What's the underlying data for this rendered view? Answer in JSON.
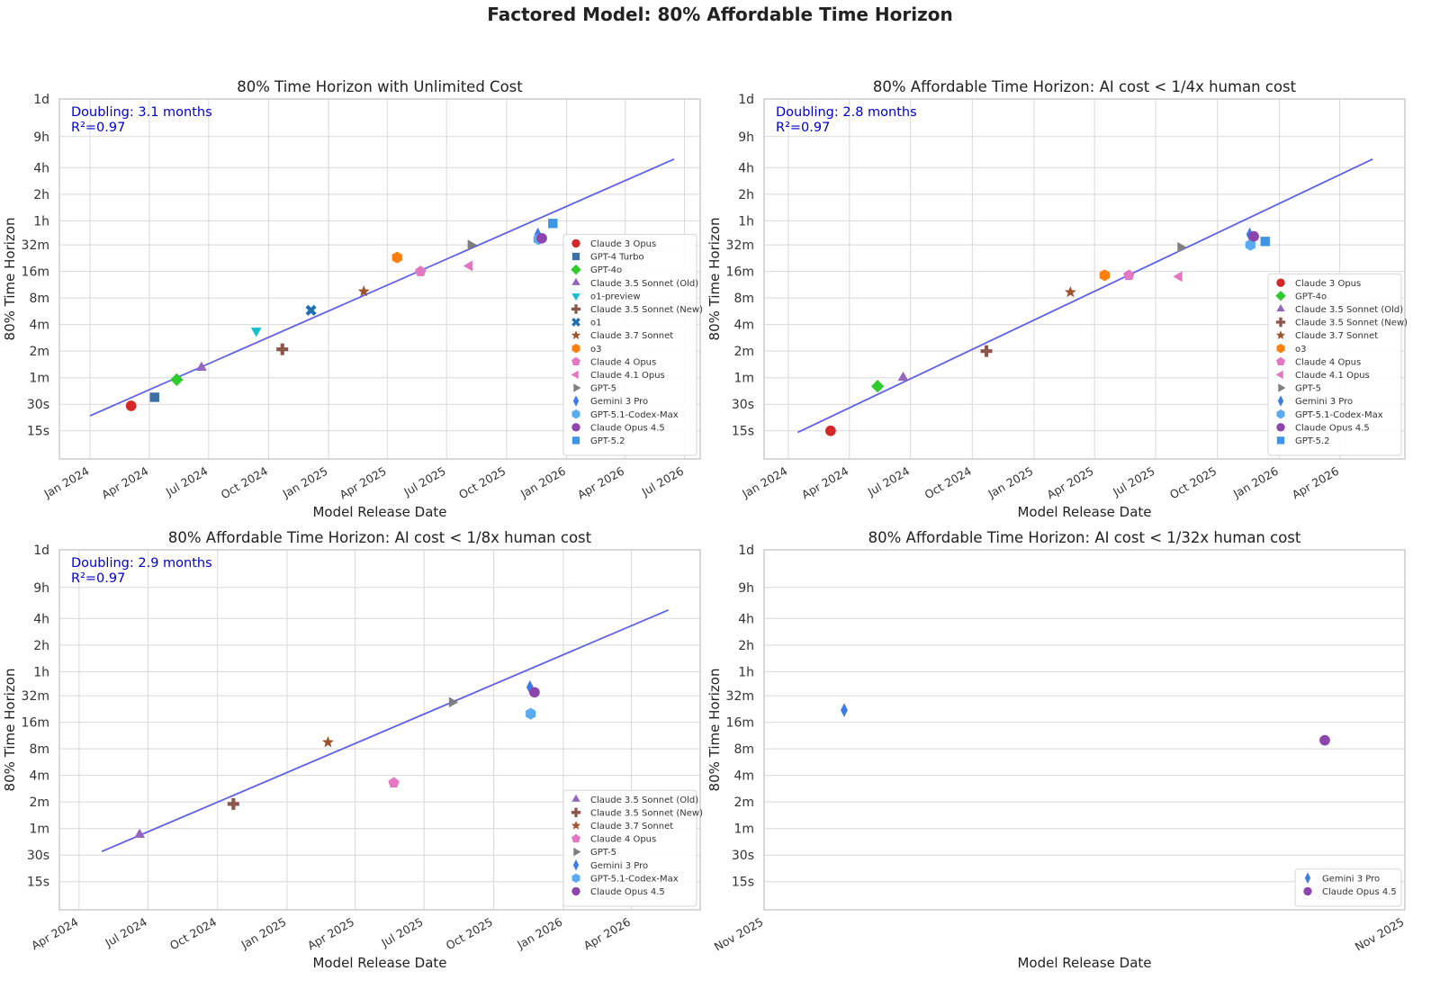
{
  "figure": {
    "title": "Factored Model: 80% Affordable Time Horizon"
  },
  "colors": {
    "Claude 3 Opus": "#d62728",
    "GPT-4 Turbo": "#3b6fa8",
    "GPT-4o": "#2ecc2e",
    "Claude 3.5 Sonnet (Old)": "#9467bd",
    "o1-preview": "#17becf",
    "Claude 3.5 Sonnet (New)": "#8c564b",
    "o1": "#1f6fb4",
    "Claude 3.7 Sonnet": "#a0522d",
    "o3": "#ff7f0e",
    "Claude 4 Opus": "#e377c2",
    "Claude 4.1 Opus": "#e377c2",
    "GPT-5": "#7f7f7f",
    "Gemini 3 Pro": "#3d7be6",
    "GPT-5.1-Codex-Max": "#5aabef",
    "Claude Opus 4.5": "#8e44ad",
    "GPT-5.2": "#3d95e6",
    "fit_line": "#6060e6",
    "annotation": "#0000cc"
  },
  "markers": {
    "Claude 3 Opus": "circle",
    "GPT-4 Turbo": "square",
    "GPT-4o": "diamond",
    "Claude 3.5 Sonnet (Old)": "triangle-up",
    "o1-preview": "triangle-down",
    "Claude 3.5 Sonnet (New)": "plus",
    "o1": "x",
    "Claude 3.7 Sonnet": "star",
    "o3": "hexagon",
    "Claude 4 Opus": "pentagon",
    "Claude 4.1 Opus": "triangle-left",
    "GPT-5": "triangle-right",
    "Gemini 3 Pro": "thin-diamond",
    "GPT-5.1-Codex-Max": "hexagon",
    "Claude Opus 4.5": "circle",
    "GPT-5.2": "square"
  },
  "chart_data": [
    {
      "type": "scatter",
      "title": "80% Time Horizon with Unlimited Cost",
      "xlabel": "Model Release Date",
      "ylabel": "80% Time Horizon",
      "yscale": "log-minutes",
      "ylim": [
        0.12,
        1440
      ],
      "y_ticks": [
        {
          "value": 0.25,
          "label": "15s"
        },
        {
          "value": 0.5,
          "label": "30s"
        },
        {
          "value": 1,
          "label": "1m"
        },
        {
          "value": 2,
          "label": "2m"
        },
        {
          "value": 4,
          "label": "4m"
        },
        {
          "value": 8,
          "label": "8m"
        },
        {
          "value": 16,
          "label": "16m"
        },
        {
          "value": 32,
          "label": "32m"
        },
        {
          "value": 60,
          "label": "1h"
        },
        {
          "value": 120,
          "label": "2h"
        },
        {
          "value": 240,
          "label": "4h"
        },
        {
          "value": 540,
          "label": "9h"
        },
        {
          "value": 1440,
          "label": "1d"
        }
      ],
      "xlim": [
        "2023-11-15",
        "2026-07-25"
      ],
      "x_ticks": [
        {
          "value": "2024-01-01",
          "label": "Jan 2024"
        },
        {
          "value": "2024-04-01",
          "label": "Apr 2024"
        },
        {
          "value": "2024-07-01",
          "label": "Jul 2024"
        },
        {
          "value": "2024-10-01",
          "label": "Oct 2024"
        },
        {
          "value": "2025-01-01",
          "label": "Jan 2025"
        },
        {
          "value": "2025-04-01",
          "label": "Apr 2025"
        },
        {
          "value": "2025-07-01",
          "label": "Jul 2025"
        },
        {
          "value": "2025-10-01",
          "label": "Oct 2025"
        },
        {
          "value": "2026-01-01",
          "label": "Jan 2026"
        },
        {
          "value": "2026-04-01",
          "label": "Apr 2026"
        },
        {
          "value": "2026-07-01",
          "label": "Jul 2026"
        }
      ],
      "annotation": {
        "doubling": "Doubling: 3.1 months",
        "r2": "R²=0.97"
      },
      "fit_line": {
        "x": [
          "2024-01-01",
          "2026-06-15"
        ],
        "y": [
          0.37,
          300
        ]
      },
      "points": [
        {
          "model": "Claude 3 Opus",
          "date": "2024-03-04",
          "y": 0.48
        },
        {
          "model": "GPT-4 Turbo",
          "date": "2024-04-09",
          "y": 0.6
        },
        {
          "model": "GPT-4o",
          "date": "2024-05-13",
          "y": 0.95
        },
        {
          "model": "Claude 3.5 Sonnet (Old)",
          "date": "2024-06-20",
          "y": 1.3
        },
        {
          "model": "o1-preview",
          "date": "2024-09-12",
          "y": 3.4
        },
        {
          "model": "Claude 3.5 Sonnet (New)",
          "date": "2024-10-22",
          "y": 2.1
        },
        {
          "model": "o1",
          "date": "2024-12-05",
          "y": 5.8
        },
        {
          "model": "Claude 3.7 Sonnet",
          "date": "2025-02-24",
          "y": 9.5
        },
        {
          "model": "o3",
          "date": "2025-04-16",
          "y": 23
        },
        {
          "model": "Claude 4 Opus",
          "date": "2025-05-22",
          "y": 16
        },
        {
          "model": "Claude 4.1 Opus",
          "date": "2025-08-05",
          "y": 18.5
        },
        {
          "model": "GPT-5",
          "date": "2025-08-07",
          "y": 32
        },
        {
          "model": "Gemini 3 Pro",
          "date": "2025-11-18",
          "y": 42
        },
        {
          "model": "GPT-5.1-Codex-Max",
          "date": "2025-11-19",
          "y": 37
        },
        {
          "model": "Claude Opus 4.5",
          "date": "2025-11-24",
          "y": 38
        },
        {
          "model": "GPT-5.2",
          "date": "2025-12-11",
          "y": 56
        }
      ],
      "legend": {
        "placement": "lower-right",
        "entries": [
          "Claude 3 Opus",
          "GPT-4 Turbo",
          "GPT-4o",
          "Claude 3.5 Sonnet (Old)",
          "o1-preview",
          "Claude 3.5 Sonnet (New)",
          "o1",
          "Claude 3.7 Sonnet",
          "o3",
          "Claude 4 Opus",
          "Claude 4.1 Opus",
          "GPT-5",
          "Gemini 3 Pro",
          "GPT-5.1-Codex-Max",
          "Claude Opus 4.5",
          "GPT-5.2"
        ]
      }
    },
    {
      "type": "scatter",
      "title": "80% Affordable Time Horizon: AI cost < 1/4x human cost",
      "xlabel": "Model Release Date",
      "ylabel": "80% Time Horizon",
      "yscale": "log-minutes",
      "ylim": [
        0.12,
        1440
      ],
      "y_ticks": [
        {
          "value": 0.25,
          "label": "15s"
        },
        {
          "value": 0.5,
          "label": "30s"
        },
        {
          "value": 1,
          "label": "1m"
        },
        {
          "value": 2,
          "label": "2m"
        },
        {
          "value": 4,
          "label": "4m"
        },
        {
          "value": 8,
          "label": "8m"
        },
        {
          "value": 16,
          "label": "16m"
        },
        {
          "value": 32,
          "label": "32m"
        },
        {
          "value": 60,
          "label": "1h"
        },
        {
          "value": 120,
          "label": "2h"
        },
        {
          "value": 240,
          "label": "4h"
        },
        {
          "value": 540,
          "label": "9h"
        },
        {
          "value": 1440,
          "label": "1d"
        }
      ],
      "xlim": [
        "2023-11-26",
        "2026-07-07"
      ],
      "x_ticks": [
        {
          "value": "2024-01-01",
          "label": "Jan 2024"
        },
        {
          "value": "2024-04-01",
          "label": "Apr 2024"
        },
        {
          "value": "2024-07-01",
          "label": "Jul 2024"
        },
        {
          "value": "2024-10-01",
          "label": "Oct 2024"
        },
        {
          "value": "2025-01-01",
          "label": "Jan 2025"
        },
        {
          "value": "2025-04-01",
          "label": "Apr 2025"
        },
        {
          "value": "2025-07-01",
          "label": "Jul 2025"
        },
        {
          "value": "2025-10-01",
          "label": "Oct 2025"
        },
        {
          "value": "2026-01-01",
          "label": "Jan 2026"
        },
        {
          "value": "2026-04-01",
          "label": "Apr 2026"
        }
      ],
      "annotation": {
        "doubling": "Doubling: 2.8 months",
        "r2": "R²=0.97"
      },
      "fit_line": {
        "x": [
          "2024-01-15",
          "2026-05-20"
        ],
        "y": [
          0.24,
          300
        ]
      },
      "points": [
        {
          "model": "Claude 3 Opus",
          "date": "2024-03-04",
          "y": 0.25
        },
        {
          "model": "GPT-4o",
          "date": "2024-05-13",
          "y": 0.8
        },
        {
          "model": "Claude 3.5 Sonnet (Old)",
          "date": "2024-06-20",
          "y": 1.0
        },
        {
          "model": "Claude 3.5 Sonnet (New)",
          "date": "2024-10-22",
          "y": 2.0
        },
        {
          "model": "Claude 3.7 Sonnet",
          "date": "2025-02-24",
          "y": 9.3
        },
        {
          "model": "o3",
          "date": "2025-04-16",
          "y": 14.5
        },
        {
          "model": "Claude 4 Opus",
          "date": "2025-05-22",
          "y": 14.5
        },
        {
          "model": "Claude 4.1 Opus",
          "date": "2025-08-05",
          "y": 14
        },
        {
          "model": "GPT-5",
          "date": "2025-08-07",
          "y": 30
        },
        {
          "model": "Gemini 3 Pro",
          "date": "2025-11-18",
          "y": 42
        },
        {
          "model": "GPT-5.1-Codex-Max",
          "date": "2025-11-19",
          "y": 32
        },
        {
          "model": "Claude Opus 4.5",
          "date": "2025-11-24",
          "y": 40
        },
        {
          "model": "GPT-5.2",
          "date": "2025-12-11",
          "y": 35
        }
      ],
      "legend": {
        "placement": "lower-right",
        "entries": [
          "Claude 3 Opus",
          "GPT-4o",
          "Claude 3.5 Sonnet (Old)",
          "Claude 3.5 Sonnet (New)",
          "Claude 3.7 Sonnet",
          "o3",
          "Claude 4 Opus",
          "Claude 4.1 Opus",
          "GPT-5",
          "Gemini 3 Pro",
          "GPT-5.1-Codex-Max",
          "Claude Opus 4.5",
          "GPT-5.2"
        ]
      }
    },
    {
      "type": "scatter",
      "title": "80% Affordable Time Horizon: AI cost < 1/8x human cost",
      "xlabel": "Model Release Date",
      "ylabel": "80% Time Horizon",
      "yscale": "log-minutes",
      "ylim": [
        0.12,
        1440
      ],
      "y_ticks": [
        {
          "value": 0.25,
          "label": "15s"
        },
        {
          "value": 0.5,
          "label": "30s"
        },
        {
          "value": 1,
          "label": "1m"
        },
        {
          "value": 2,
          "label": "2m"
        },
        {
          "value": 4,
          "label": "4m"
        },
        {
          "value": 8,
          "label": "8m"
        },
        {
          "value": 16,
          "label": "16m"
        },
        {
          "value": 32,
          "label": "32m"
        },
        {
          "value": 60,
          "label": "1h"
        },
        {
          "value": 120,
          "label": "2h"
        },
        {
          "value": 240,
          "label": "4h"
        },
        {
          "value": 540,
          "label": "9h"
        },
        {
          "value": 1440,
          "label": "1d"
        }
      ],
      "xlim": [
        "2024-03-06",
        "2026-07-01"
      ],
      "x_ticks": [
        {
          "value": "2024-04-01",
          "label": "Apr 2024"
        },
        {
          "value": "2024-07-01",
          "label": "Jul 2024"
        },
        {
          "value": "2024-10-01",
          "label": "Oct 2024"
        },
        {
          "value": "2025-01-01",
          "label": "Jan 2025"
        },
        {
          "value": "2025-04-01",
          "label": "Apr 2025"
        },
        {
          "value": "2025-07-01",
          "label": "Jul 2025"
        },
        {
          "value": "2025-10-01",
          "label": "Oct 2025"
        },
        {
          "value": "2026-01-01",
          "label": "Jan 2026"
        },
        {
          "value": "2026-04-01",
          "label": "Apr 2026"
        }
      ],
      "annotation": {
        "doubling": "Doubling: 2.9 months",
        "r2": "R²=0.97"
      },
      "fit_line": {
        "x": [
          "2024-05-01",
          "2026-05-20"
        ],
        "y": [
          0.55,
          300
        ]
      },
      "points": [
        {
          "model": "Claude 3.5 Sonnet (Old)",
          "date": "2024-06-20",
          "y": 0.85
        },
        {
          "model": "Claude 3.5 Sonnet (New)",
          "date": "2024-10-22",
          "y": 1.9
        },
        {
          "model": "Claude 3.7 Sonnet",
          "date": "2025-02-24",
          "y": 9.5
        },
        {
          "model": "Claude 4 Opus",
          "date": "2025-05-22",
          "y": 3.3
        },
        {
          "model": "GPT-5",
          "date": "2025-08-07",
          "y": 27
        },
        {
          "model": "Gemini 3 Pro",
          "date": "2025-11-18",
          "y": 40
        },
        {
          "model": "GPT-5.1-Codex-Max",
          "date": "2025-11-19",
          "y": 20
        },
        {
          "model": "Claude Opus 4.5",
          "date": "2025-11-24",
          "y": 35
        }
      ],
      "legend": {
        "placement": "lower-right",
        "entries": [
          "Claude 3.5 Sonnet (Old)",
          "Claude 3.5 Sonnet (New)",
          "Claude 3.7 Sonnet",
          "Claude 4 Opus",
          "GPT-5",
          "Gemini 3 Pro",
          "GPT-5.1-Codex-Max",
          "Claude Opus 4.5"
        ]
      }
    },
    {
      "type": "scatter",
      "title": "80% Affordable Time Horizon: AI cost < 1/32x human cost",
      "xlabel": "Model Release Date",
      "ylabel": "80% Time Horizon",
      "yscale": "log-minutes",
      "ylim": [
        0.12,
        1440
      ],
      "y_ticks": [
        {
          "value": 0.25,
          "label": "15s"
        },
        {
          "value": 0.5,
          "label": "30s"
        },
        {
          "value": 1,
          "label": "1m"
        },
        {
          "value": 2,
          "label": "2m"
        },
        {
          "value": 4,
          "label": "4m"
        },
        {
          "value": 8,
          "label": "8m"
        },
        {
          "value": 16,
          "label": "16m"
        },
        {
          "value": 32,
          "label": "32m"
        },
        {
          "value": 60,
          "label": "1h"
        },
        {
          "value": 120,
          "label": "2h"
        },
        {
          "value": 240,
          "label": "4h"
        },
        {
          "value": 540,
          "label": "9h"
        },
        {
          "value": 1440,
          "label": "1d"
        }
      ],
      "xlim": [
        "2025-11-17",
        "2025-11-25"
      ],
      "x_ticks": [
        {
          "value": "2025-11-17",
          "label": "Nov 2025"
        },
        {
          "value": "2025-11-25",
          "label": "Nov 2025"
        }
      ],
      "annotation": null,
      "fit_line": null,
      "points": [
        {
          "model": "Gemini 3 Pro",
          "date": "2025-11-18",
          "y": 22
        },
        {
          "model": "Claude Opus 4.5",
          "date": "2025-11-24",
          "y": 10
        }
      ],
      "legend": {
        "placement": "lower-right",
        "entries": [
          "Gemini 3 Pro",
          "Claude Opus 4.5"
        ]
      }
    }
  ]
}
